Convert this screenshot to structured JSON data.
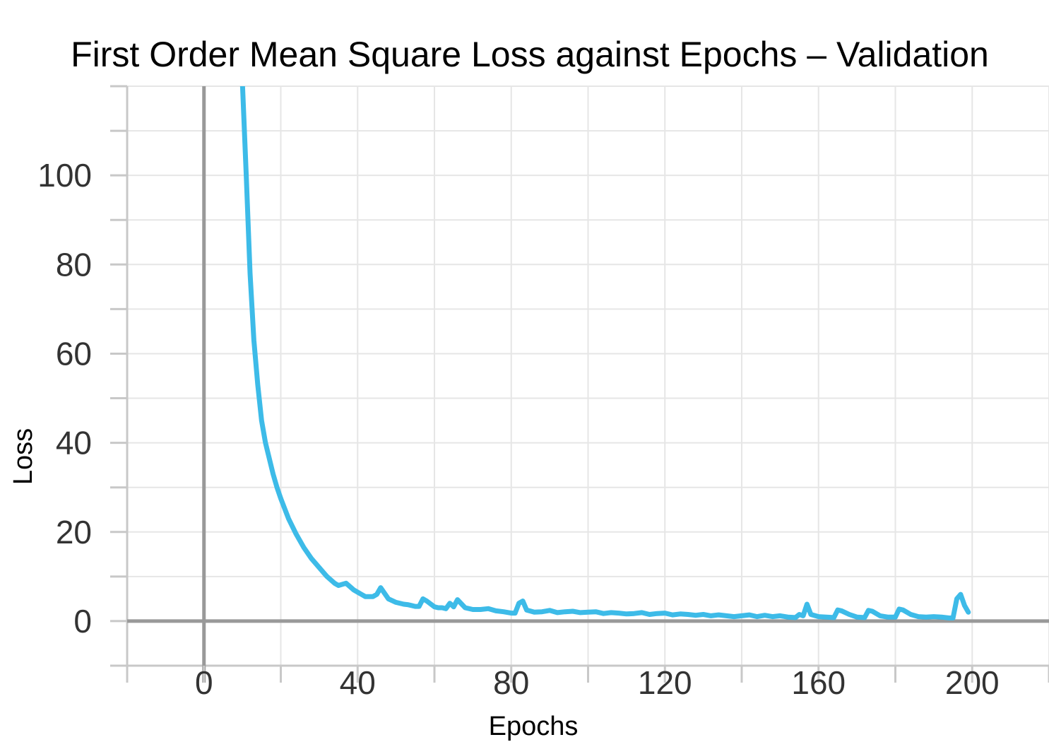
{
  "chart_data": {
    "type": "line",
    "title": "First Order Mean Square Loss against Epochs – Validation",
    "xlabel": "Epochs",
    "ylabel": "Loss",
    "xlim": [
      -20,
      220
    ],
    "ylim": [
      -10,
      120
    ],
    "xticks": [
      0,
      40,
      80,
      120,
      160,
      200
    ],
    "xtick_labels": [
      "0",
      "40",
      "80",
      "120",
      "160",
      "200"
    ],
    "yticks": [
      0,
      20,
      40,
      60,
      80,
      100
    ],
    "ytick_labels": [
      "0",
      "20",
      "40",
      "60",
      "80",
      "100"
    ],
    "grid": true,
    "series": [
      {
        "color": "#3dbbe8",
        "x": [
          10,
          11,
          12,
          13,
          14,
          15,
          16,
          17,
          18,
          19,
          20,
          22,
          24,
          26,
          28,
          30,
          32,
          34,
          35,
          37,
          39,
          41,
          42,
          44,
          45,
          46,
          48,
          50,
          52,
          53,
          54,
          55,
          56,
          57,
          58,
          60,
          61,
          62,
          63,
          64,
          65,
          66,
          68,
          70,
          72,
          74,
          76,
          78,
          80,
          81,
          82,
          83,
          84,
          86,
          88,
          90,
          92,
          94,
          96,
          98,
          100,
          102,
          104,
          106,
          108,
          110,
          112,
          114,
          116,
          118,
          120,
          122,
          124,
          126,
          128,
          130,
          132,
          134,
          136,
          138,
          140,
          142,
          144,
          146,
          148,
          150,
          152,
          154,
          155,
          156,
          157,
          158,
          160,
          162,
          164,
          165,
          166,
          168,
          170,
          172,
          173,
          174,
          176,
          178,
          180,
          181,
          182,
          184,
          186,
          188,
          190,
          192,
          194,
          195,
          196,
          197,
          198,
          199
        ],
        "y": [
          121,
          100,
          78,
          63,
          53,
          45,
          40,
          36.5,
          33,
          30,
          27.5,
          23,
          19.5,
          16.5,
          14,
          12,
          10,
          8.5,
          8,
          8.5,
          7,
          6,
          5.5,
          5.5,
          6,
          7.5,
          5,
          4.2,
          3.8,
          3.7,
          3.5,
          3.3,
          3.3,
          5,
          4.5,
          3.2,
          3,
          3,
          2.8,
          4,
          3.2,
          4.8,
          3,
          2.6,
          2.6,
          2.8,
          2.3,
          2.1,
          1.8,
          1.8,
          4,
          4.5,
          2.5,
          2,
          2.1,
          2.4,
          1.9,
          2.1,
          2.2,
          1.9,
          2,
          2.1,
          1.7,
          1.9,
          1.8,
          1.6,
          1.7,
          1.9,
          1.5,
          1.7,
          1.8,
          1.4,
          1.6,
          1.5,
          1.3,
          1.5,
          1.2,
          1.4,
          1.2,
          1,
          1.2,
          1.4,
          1,
          1.3,
          1,
          1.2,
          0.9,
          0.8,
          1.5,
          1.2,
          3.8,
          1.5,
          1,
          0.9,
          0.8,
          2.5,
          2.3,
          1.5,
          0.9,
          0.8,
          2.4,
          2.2,
          1.2,
          0.9,
          0.9,
          2.7,
          2.5,
          1.5,
          1,
          0.9,
          1,
          0.9,
          0.7,
          0.7,
          5,
          6,
          3.5,
          2
        ]
      }
    ]
  }
}
